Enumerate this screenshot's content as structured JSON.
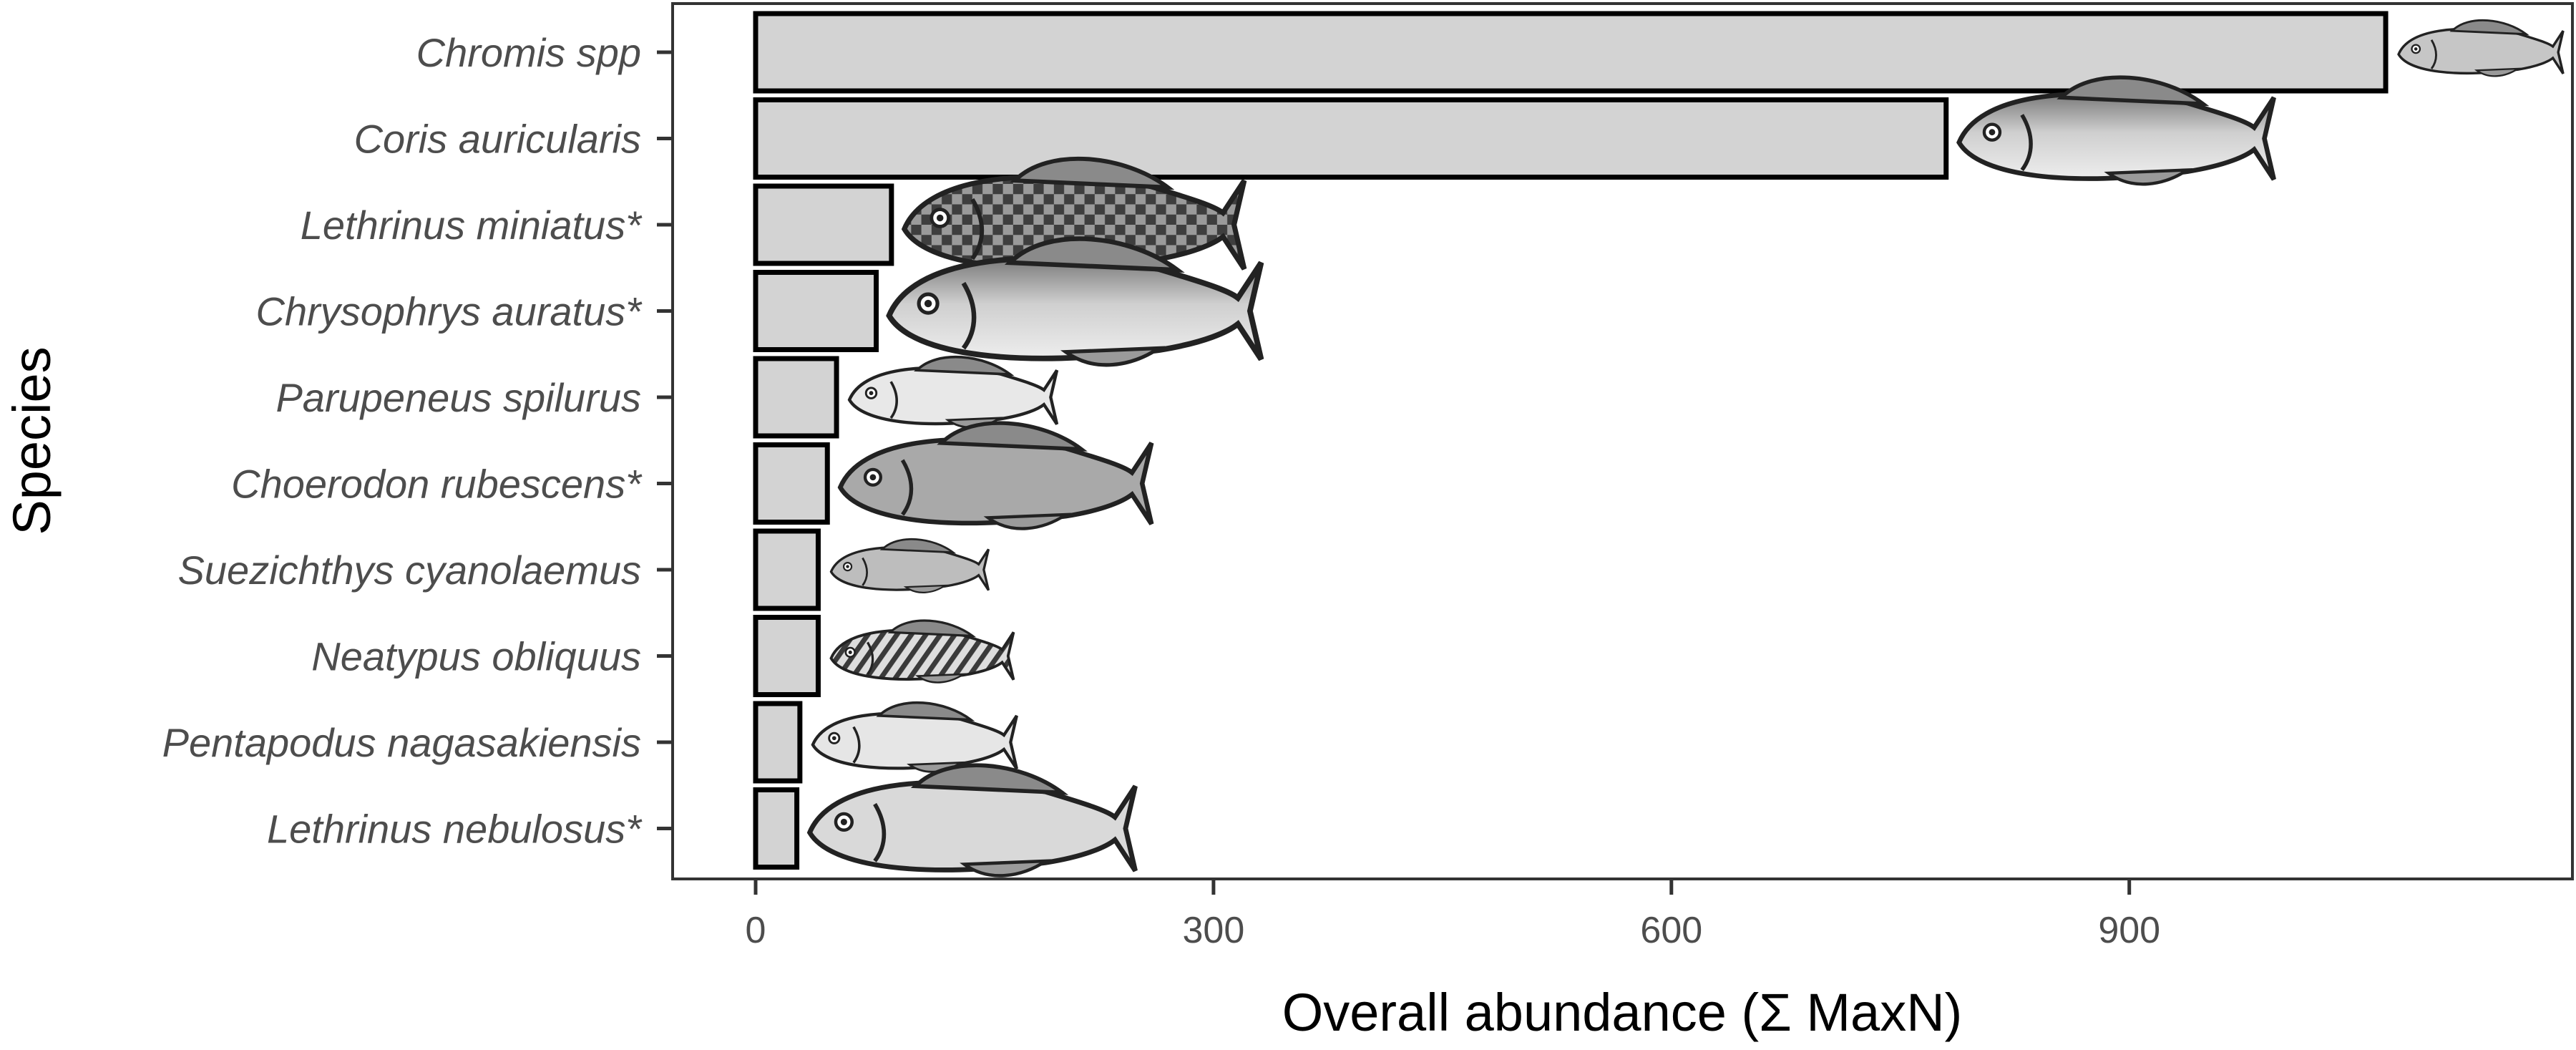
{
  "chart_data": {
    "type": "bar",
    "orientation": "horizontal",
    "categories": [
      "Chromis spp",
      "Coris auricularis",
      "Lethrinus miniatus*",
      "Chrysophrys auratus*",
      "Parupeneus spilurus",
      "Choerodon rubescens*",
      "Suezichthys cyanolaemus",
      "Neatypus obliquus",
      "Pentapodus nagasakiensis",
      "Lethrinus nebulosus*"
    ],
    "values": [
      1068,
      780,
      89,
      79,
      53,
      47,
      41,
      41,
      29,
      27
    ],
    "icons": [
      "chromis-fish-icon",
      "coris-wrasse-fish-icon",
      "lethrinus-miniatus-fish-icon",
      "snapper-fish-icon",
      "goatfish-icon",
      "baldchin-groper-fish-icon",
      "small-wrasse-fish-icon",
      "striped-footballer-fish-icon",
      "pentapodus-fish-icon",
      "spangled-emperor-fish-icon"
    ],
    "xlabel": "Overall abundance (Σ MaxN)",
    "ylabel": "Species",
    "x_ticks": [
      0,
      300,
      600,
      900
    ],
    "xlim": [
      -55,
      1195
    ],
    "grid": false,
    "legend": "none",
    "colors": {
      "bar_fill": "#d3d3d3",
      "bar_stroke": "#000000",
      "tick_text": "#4d4d4d",
      "title_text": "#000000",
      "panel_border": "#333333"
    }
  }
}
